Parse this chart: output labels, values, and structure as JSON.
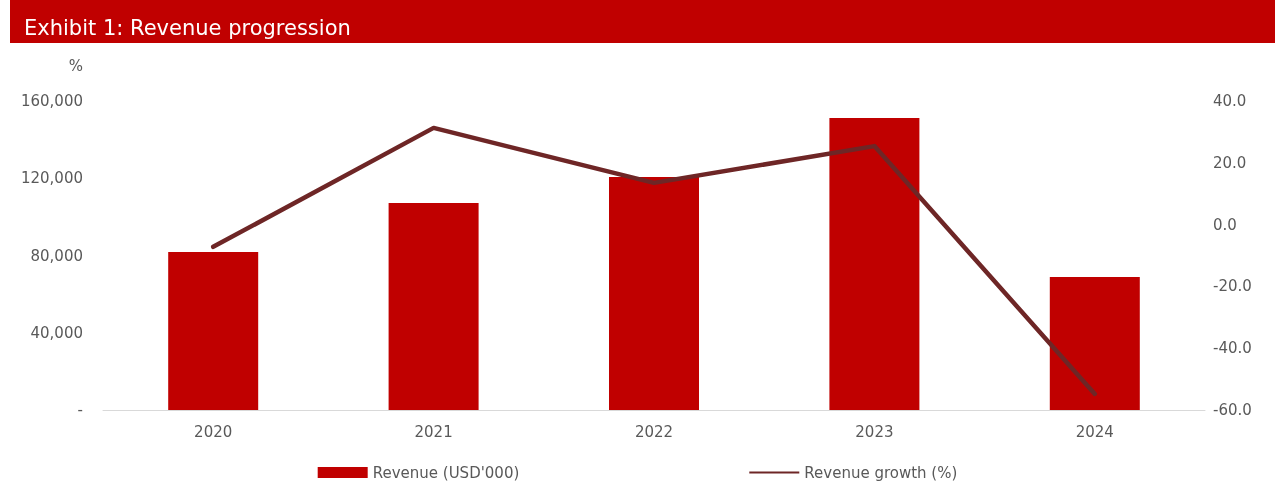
{
  "chart_data": {
    "type": "bar",
    "title": "Exhibit 1: Revenue progression",
    "ylabel": "%",
    "categories": [
      "2020",
      "2021",
      "2022",
      "2023",
      "2024"
    ],
    "series": [
      {
        "name": "Revenue (USD'000)",
        "color": "#c00000",
        "values": [
          81800,
          107200,
          120600,
          151200,
          68900
        ]
      },
      {
        "name": "Revenue growth (%)",
        "type": "line",
        "axis": "y2",
        "color": "#6e2626",
        "values": [
          -7.2,
          31.3,
          13.5,
          25.4,
          -54.8
        ]
      }
    ],
    "ylim": [
      0,
      160000
    ],
    "yticks": [
      {
        "value": 0,
        "label": "-"
      },
      {
        "value": 40000,
        "label": "40,000"
      },
      {
        "value": 80000,
        "label": "80,000"
      },
      {
        "value": 120000,
        "label": "120,000"
      },
      {
        "value": 160000,
        "label": "160,000"
      }
    ],
    "y2lim": [
      -60,
      40
    ],
    "y2ticks": [
      {
        "value": -60,
        "label": "-60.0"
      },
      {
        "value": -40,
        "label": "-40.0"
      },
      {
        "value": -20,
        "label": "-20.0"
      },
      {
        "value": 0,
        "label": "0.0"
      },
      {
        "value": 20,
        "label": "20.0"
      },
      {
        "value": 40,
        "label": "40.0"
      }
    ],
    "grid": false,
    "legend": "bottom",
    "marker": "none",
    "line_style": "solid"
  }
}
